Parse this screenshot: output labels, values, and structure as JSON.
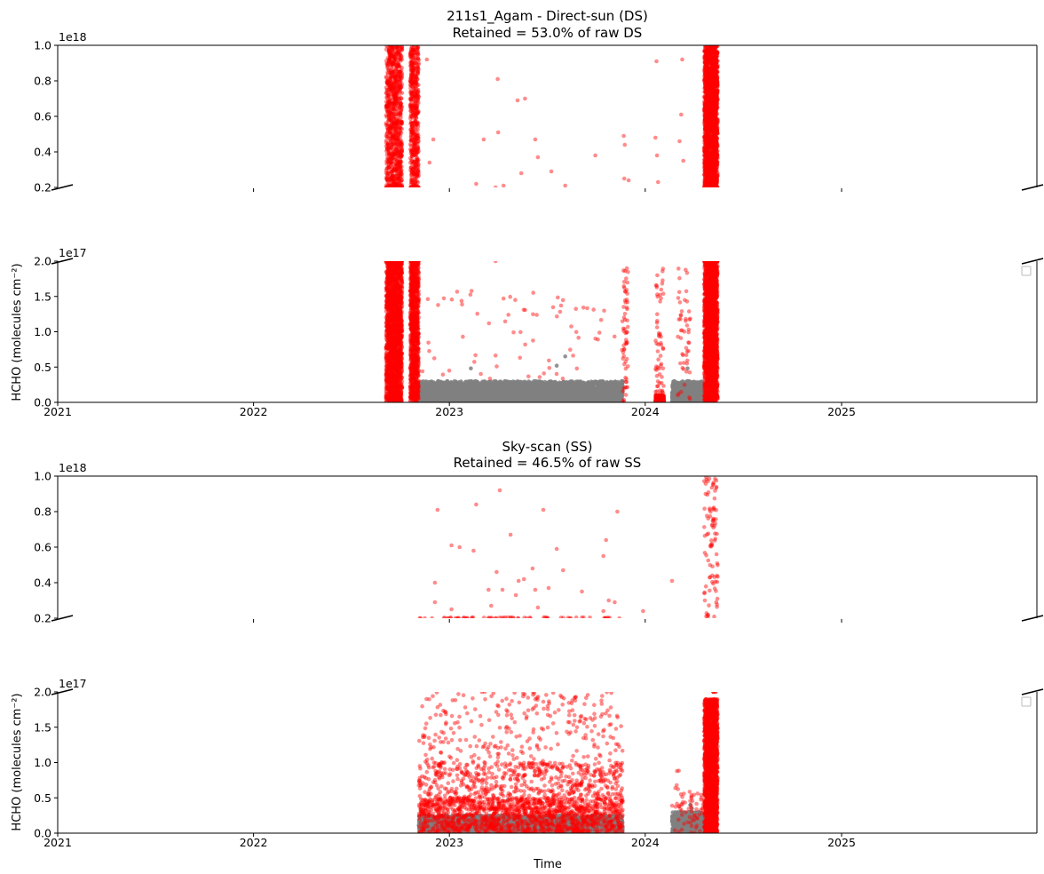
{
  "figure": {
    "xlabel": "Time",
    "colors": {
      "retained": "#ff0000",
      "filtered": "#808080",
      "axis": "#000000"
    }
  },
  "chart_data": [
    {
      "type": "scatter",
      "title": "211s1_Agam - Direct-sun (DS)",
      "subtitle": "Retained = 53.0% of raw DS",
      "ylabel": "HCHO (molecules cm⁻²)",
      "x_axis": {
        "type": "date",
        "range": [
          "2021-01-01",
          "2025-12-31"
        ],
        "tick_labels": [
          "2021",
          "2022",
          "2023",
          "2024",
          "2025"
        ]
      },
      "broken_axis": true,
      "upper": {
        "ylim": [
          2e+17,
          1e+18
        ],
        "offset_label": "1e18",
        "tick_labels": [
          "0.2",
          "0.4",
          "0.6",
          "0.8",
          "1.0"
        ]
      },
      "lower": {
        "ylim": [
          0,
          2e+17
        ],
        "offset_label": "1e17",
        "tick_labels": [
          "0.0",
          "0.5",
          "1.0",
          "1.5",
          "2.0"
        ]
      },
      "series": [
        {
          "color": "#ff0000",
          "points": [
            {
              "x": "2023-04-01",
              "y": 8.1e+17
            },
            {
              "x": "2023-05-08",
              "y": 6.9e+17
            },
            {
              "x": "2023-05-22",
              "y": 7e+17
            },
            {
              "x": "2023-03-06",
              "y": 4.7e+17
            },
            {
              "x": "2023-04-02",
              "y": 5.1e+17
            },
            {
              "x": "2023-06-10",
              "y": 4.7e+17
            },
            {
              "x": "2023-07-10",
              "y": 2.9e+17
            },
            {
              "x": "2023-05-15",
              "y": 2.8e+17
            },
            {
              "x": "2023-08-05",
              "y": 2.1e+17
            },
            {
              "x": "2023-04-12",
              "y": 2.1e+17
            },
            {
              "x": "2022-11-20",
              "y": 9.2e+17
            },
            {
              "x": "2022-12-02",
              "y": 4.7e+17
            },
            {
              "x": "2022-11-25",
              "y": 3.4e+17
            },
            {
              "x": "2023-11-22",
              "y": 4.9e+17
            },
            {
              "x": "2023-11-24",
              "y": 4.4e+17
            },
            {
              "x": "2023-11-23",
              "y": 2.5e+17
            },
            {
              "x": "2024-01-20",
              "y": 4.8e+17
            },
            {
              "x": "2024-01-23",
              "y": 3.8e+17
            },
            {
              "x": "2024-01-25",
              "y": 2.3e+17
            },
            {
              "x": "2024-03-05",
              "y": 4.6e+17
            },
            {
              "x": "2024-03-08",
              "y": 6.1e+17
            },
            {
              "x": "2024-03-10",
              "y": 9.2e+17
            },
            {
              "x": "2024-01-22",
              "y": 9.1e+17
            },
            {
              "x": "2024-03-12",
              "y": 3.5e+17
            },
            {
              "x": "2023-12-01",
              "y": 2.4e+17
            },
            {
              "x": "2023-09-30",
              "y": 3.8e+17
            },
            {
              "x": "2023-02-20",
              "y": 2.2e+17
            },
            {
              "x": "2023-06-15",
              "y": 3.7e+17
            },
            {
              "x": "2023-03-28",
              "y": 2e+17
            }
          ],
          "ranges": [
            {
              "x": [
                "2022-09-05",
                "2022-10-05"
              ],
              "y": [
                2e+17,
                1e+18
              ],
              "n": 900
            },
            {
              "x": [
                "2022-10-20",
                "2022-11-05"
              ],
              "y": [
                2e+17,
                1e+18
              ],
              "n": 500
            },
            {
              "x": [
                "2024-04-20",
                "2024-05-15"
              ],
              "y": [
                2e+17,
                1e+18
              ],
              "n": 2000
            },
            {
              "x": [
                "2022-09-05",
                "2022-10-05"
              ],
              "y": [
                0,
                2e+17
              ],
              "n": 2000
            },
            {
              "x": [
                "2022-10-20",
                "2022-11-05"
              ],
              "y": [
                0,
                2e+17
              ],
              "n": 1000
            },
            {
              "x": [
                "2024-04-20",
                "2024-05-15"
              ],
              "y": [
                0,
                2e+17
              ],
              "n": 2000
            },
            {
              "x": [
                "2024-01-20",
                "2024-02-05"
              ],
              "y": [
                0,
                1e+16
              ],
              "n": 200
            },
            {
              "x": [
                "2024-01-20",
                "2024-02-05"
              ],
              "y": [
                0,
                1.9e+17
              ],
              "n": 60
            },
            {
              "x": [
                "2024-03-01",
                "2024-03-25"
              ],
              "y": [
                0,
                1.9e+17
              ],
              "n": 50
            },
            {
              "x": [
                "2023-11-20",
                "2023-11-30"
              ],
              "y": [
                0,
                1.9e+17
              ],
              "n": 60
            },
            {
              "x": [
                "2022-11-01",
                "2023-11-20"
              ],
              "y": [
                3e+16,
                1.6e+17
              ],
              "n": 70
            }
          ]
        },
        {
          "color": "#808080",
          "ranges": [
            {
              "x": [
                "2022-11-05",
                "2023-11-20"
              ],
              "y": [
                0,
                3e+16
              ],
              "n": 4000
            },
            {
              "x": [
                "2024-02-20",
                "2024-04-20"
              ],
              "y": [
                0,
                3e+16
              ],
              "n": 700
            }
          ],
          "points": [
            {
              "x": "2023-08-05",
              "y": 6.5e+16
            },
            {
              "x": "2023-07-20",
              "y": 5.2e+16
            },
            {
              "x": "2023-02-10",
              "y": 4.8e+16
            },
            {
              "x": "2024-03-20",
              "y": 4.8e+16
            }
          ]
        }
      ]
    },
    {
      "type": "scatter",
      "title": "Sky-scan (SS)",
      "subtitle": "Retained = 46.5% of raw SS",
      "ylabel": "HCHO (molecules cm⁻²)",
      "xlabel": "Time",
      "x_axis": {
        "type": "date",
        "range": [
          "2021-01-01",
          "2025-12-31"
        ],
        "tick_labels": [
          "2021",
          "2022",
          "2023",
          "2024",
          "2025"
        ]
      },
      "broken_axis": true,
      "upper": {
        "ylim": [
          2e+17,
          1e+18
        ],
        "offset_label": "1e18",
        "tick_labels": [
          "0.2",
          "0.4",
          "0.6",
          "0.8",
          "1.0"
        ]
      },
      "lower": {
        "ylim": [
          0,
          2e+17
        ],
        "offset_label": "1e17",
        "tick_labels": [
          "0.0",
          "0.5",
          "1.0",
          "1.5",
          "2.0"
        ]
      },
      "series": [
        {
          "color": "#ff0000",
          "points": [
            {
              "x": "2022-12-10",
              "y": 8.1e+17
            },
            {
              "x": "2023-02-20",
              "y": 8.4e+17
            },
            {
              "x": "2023-04-05",
              "y": 9.2e+17
            },
            {
              "x": "2023-06-25",
              "y": 8.1e+17
            },
            {
              "x": "2023-11-10",
              "y": 8e+17
            },
            {
              "x": "2023-01-05",
              "y": 6.1e+17
            },
            {
              "x": "2023-01-20",
              "y": 6e+17
            },
            {
              "x": "2023-02-15",
              "y": 5.8e+17
            },
            {
              "x": "2023-04-25",
              "y": 6.7e+17
            },
            {
              "x": "2023-07-20",
              "y": 5.9e+17
            },
            {
              "x": "2023-10-20",
              "y": 6.4e+17
            },
            {
              "x": "2023-10-15",
              "y": 5.5e+17
            },
            {
              "x": "2023-03-30",
              "y": 4.6e+17
            },
            {
              "x": "2023-05-10",
              "y": 4.1e+17
            },
            {
              "x": "2023-06-05",
              "y": 4.8e+17
            },
            {
              "x": "2023-08-01",
              "y": 4.7e+17
            },
            {
              "x": "2022-12-05",
              "y": 4e+17
            },
            {
              "x": "2023-03-15",
              "y": 3.6e+17
            },
            {
              "x": "2023-04-10",
              "y": 3.6e+17
            },
            {
              "x": "2023-05-20",
              "y": 4.2e+17
            },
            {
              "x": "2023-06-10",
              "y": 3.6e+17
            },
            {
              "x": "2023-07-05",
              "y": 3.7e+17
            },
            {
              "x": "2023-09-05",
              "y": 3.5e+17
            },
            {
              "x": "2023-10-25",
              "y": 3e+17
            },
            {
              "x": "2022-12-05",
              "y": 2.9e+17
            },
            {
              "x": "2023-01-05",
              "y": 2.5e+17
            },
            {
              "x": "2023-03-20",
              "y": 2.7e+17
            },
            {
              "x": "2023-05-05",
              "y": 3.3e+17
            },
            {
              "x": "2023-06-15",
              "y": 2.6e+17
            },
            {
              "x": "2023-10-15",
              "y": 2.4e+17
            },
            {
              "x": "2023-11-05",
              "y": 2.9e+17
            },
            {
              "x": "2024-02-20",
              "y": 4.1e+17
            },
            {
              "x": "2023-12-28",
              "y": 2.4e+17
            }
          ],
          "ranges": [
            {
              "x": [
                "2022-11-25",
                "2023-11-20"
              ],
              "y": [
                2e+17,
                2.05e+17
              ],
              "n": 40
            },
            {
              "x": [
                "2024-04-20",
                "2024-05-15"
              ],
              "y": [
                2e+17,
                1e+18
              ],
              "n": 90
            },
            {
              "x": [
                "2022-11-05",
                "2023-11-20"
              ],
              "y": [
                2e+16,
                2e+17
              ],
              "n": 500
            },
            {
              "x": [
                "2022-11-05",
                "2023-11-20"
              ],
              "y": [
                0,
                5e+16
              ],
              "n": 1400
            },
            {
              "x": [
                "2022-11-05",
                "2023-11-20"
              ],
              "y": [
                5e+16,
                1e+17
              ],
              "n": 400
            },
            {
              "x": [
                "2024-04-20",
                "2024-05-15"
              ],
              "y": [
                0,
                1.9e+17
              ],
              "n": 2000
            },
            {
              "x": [
                "2024-02-20",
                "2024-04-20"
              ],
              "y": [
                0,
                6e+16
              ],
              "n": 60
            },
            {
              "x": [
                "2024-02-25",
                "2024-03-05"
              ],
              "y": [
                6e+16,
                9e+16
              ],
              "n": 5
            }
          ]
        },
        {
          "color": "#808080",
          "ranges": [
            {
              "x": [
                "2022-11-05",
                "2023-11-20"
              ],
              "y": [
                0,
                2.5e+16
              ],
              "n": 3500
            },
            {
              "x": [
                "2024-02-20",
                "2024-04-20"
              ],
              "y": [
                0,
                3e+16
              ],
              "n": 700
            }
          ],
          "points": [
            {
              "x": "2024-03-25",
              "y": 4e+16
            },
            {
              "x": "2024-03-28",
              "y": 3.5e+16
            },
            {
              "x": "2023-04-20",
              "y": 4.7e+16
            },
            {
              "x": "2023-06-20",
              "y": 4.5e+16
            }
          ]
        }
      ]
    }
  ]
}
